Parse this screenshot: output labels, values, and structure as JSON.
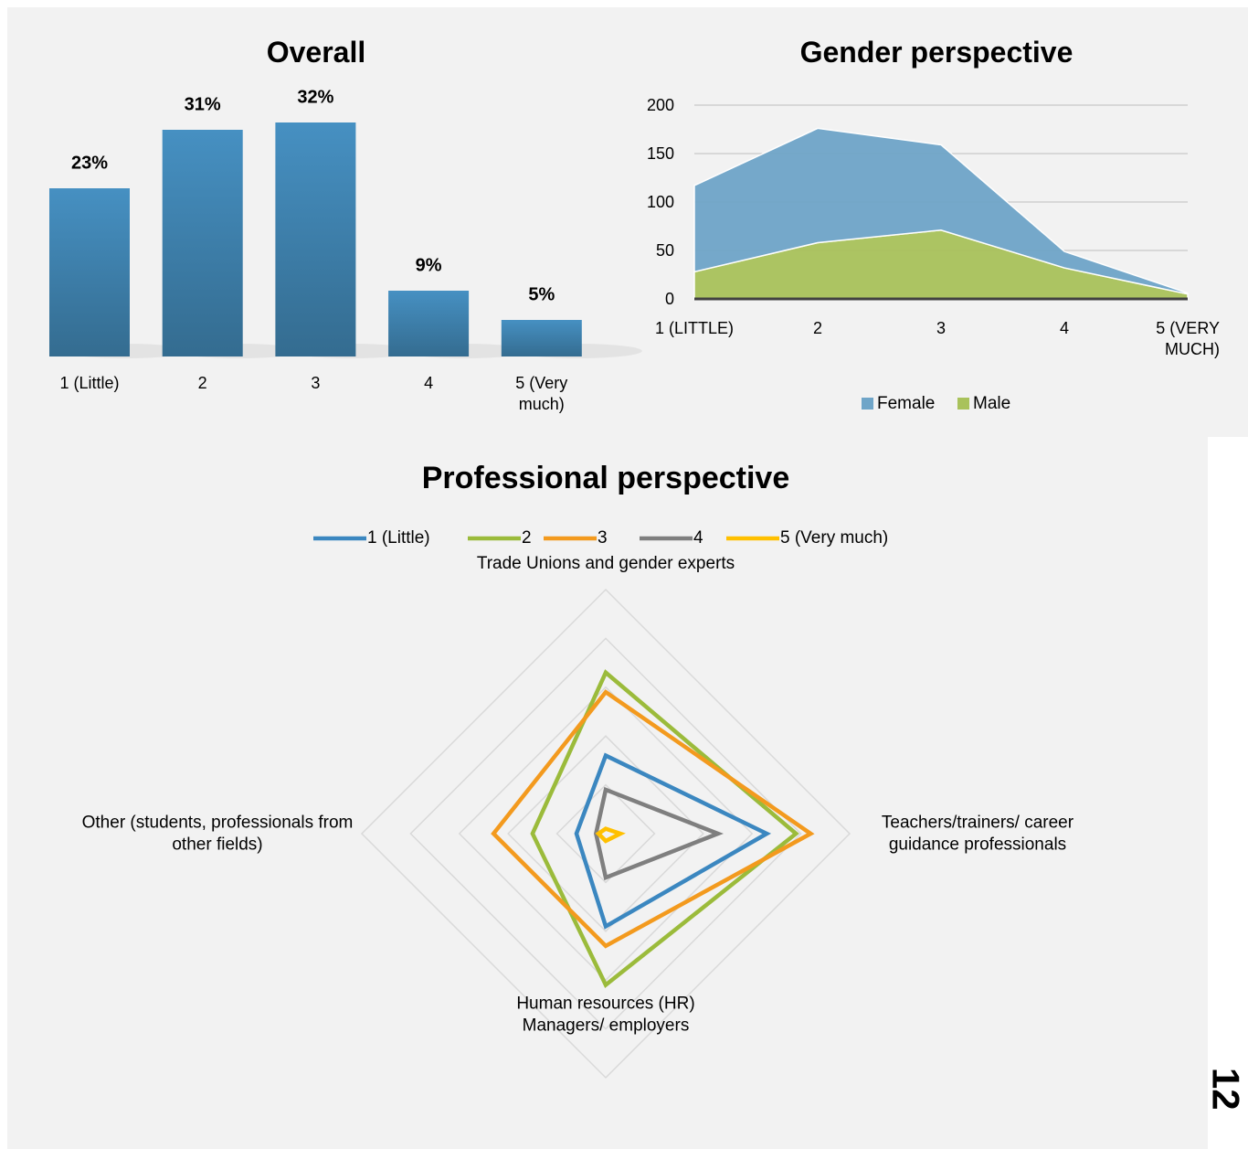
{
  "page_number": "12",
  "chart_data": [
    {
      "type": "bar",
      "title": "Overall",
      "categories": [
        "1 (Little)",
        "2",
        "3",
        "4",
        "5 (Very much)"
      ],
      "values": [
        23,
        31,
        32,
        9,
        5
      ],
      "value_labels": [
        "23%",
        "31%",
        "32%",
        "9%",
        "5%"
      ],
      "color": "#3f83b0"
    },
    {
      "type": "area",
      "title": "Gender perspective",
      "categories": [
        "1 (LITTLE)",
        "2",
        "3",
        "4",
        "5 (VERY MUCH)"
      ],
      "series": [
        {
          "name": "Female",
          "color": "#6fa5c8",
          "values": [
            89,
            118,
            88,
            17,
            1
          ]
        },
        {
          "name": "Male",
          "color": "#a9c25b",
          "values": [
            28,
            58,
            71,
            32,
            5
          ]
        }
      ],
      "stacked": true,
      "ylim": [
        0,
        200
      ],
      "yticks": [
        0,
        50,
        100,
        150,
        200
      ],
      "grid": true,
      "legend": "bottom"
    },
    {
      "type": "radar",
      "title": "Professional perspective",
      "categories": [
        "Trade Unions and gender experts",
        "Teachers/trainers/ career guidance professionals",
        "Human resources (HR) Managers/ employers",
        "Other (students, professionals from other fields)"
      ],
      "series": [
        {
          "name": "1 (Little)",
          "color": "#3b87c0",
          "values": [
            16,
            33,
            19,
            6
          ]
        },
        {
          "name": "2",
          "color": "#9bbb3b",
          "values": [
            33,
            39,
            31,
            15
          ]
        },
        {
          "name": "3",
          "color": "#f39a1e",
          "values": [
            29,
            42,
            23,
            23
          ]
        },
        {
          "name": "4",
          "color": "#7f7f7f",
          "values": [
            9,
            23,
            9,
            2
          ]
        },
        {
          "name": "5 (Very much)",
          "color": "#ffc000",
          "values": [
            1,
            3,
            1.5,
            1.5
          ]
        }
      ],
      "rlim": [
        0,
        50
      ],
      "rticks": [
        10,
        20,
        30,
        40,
        50
      ],
      "grid": true,
      "legend": "top"
    }
  ]
}
